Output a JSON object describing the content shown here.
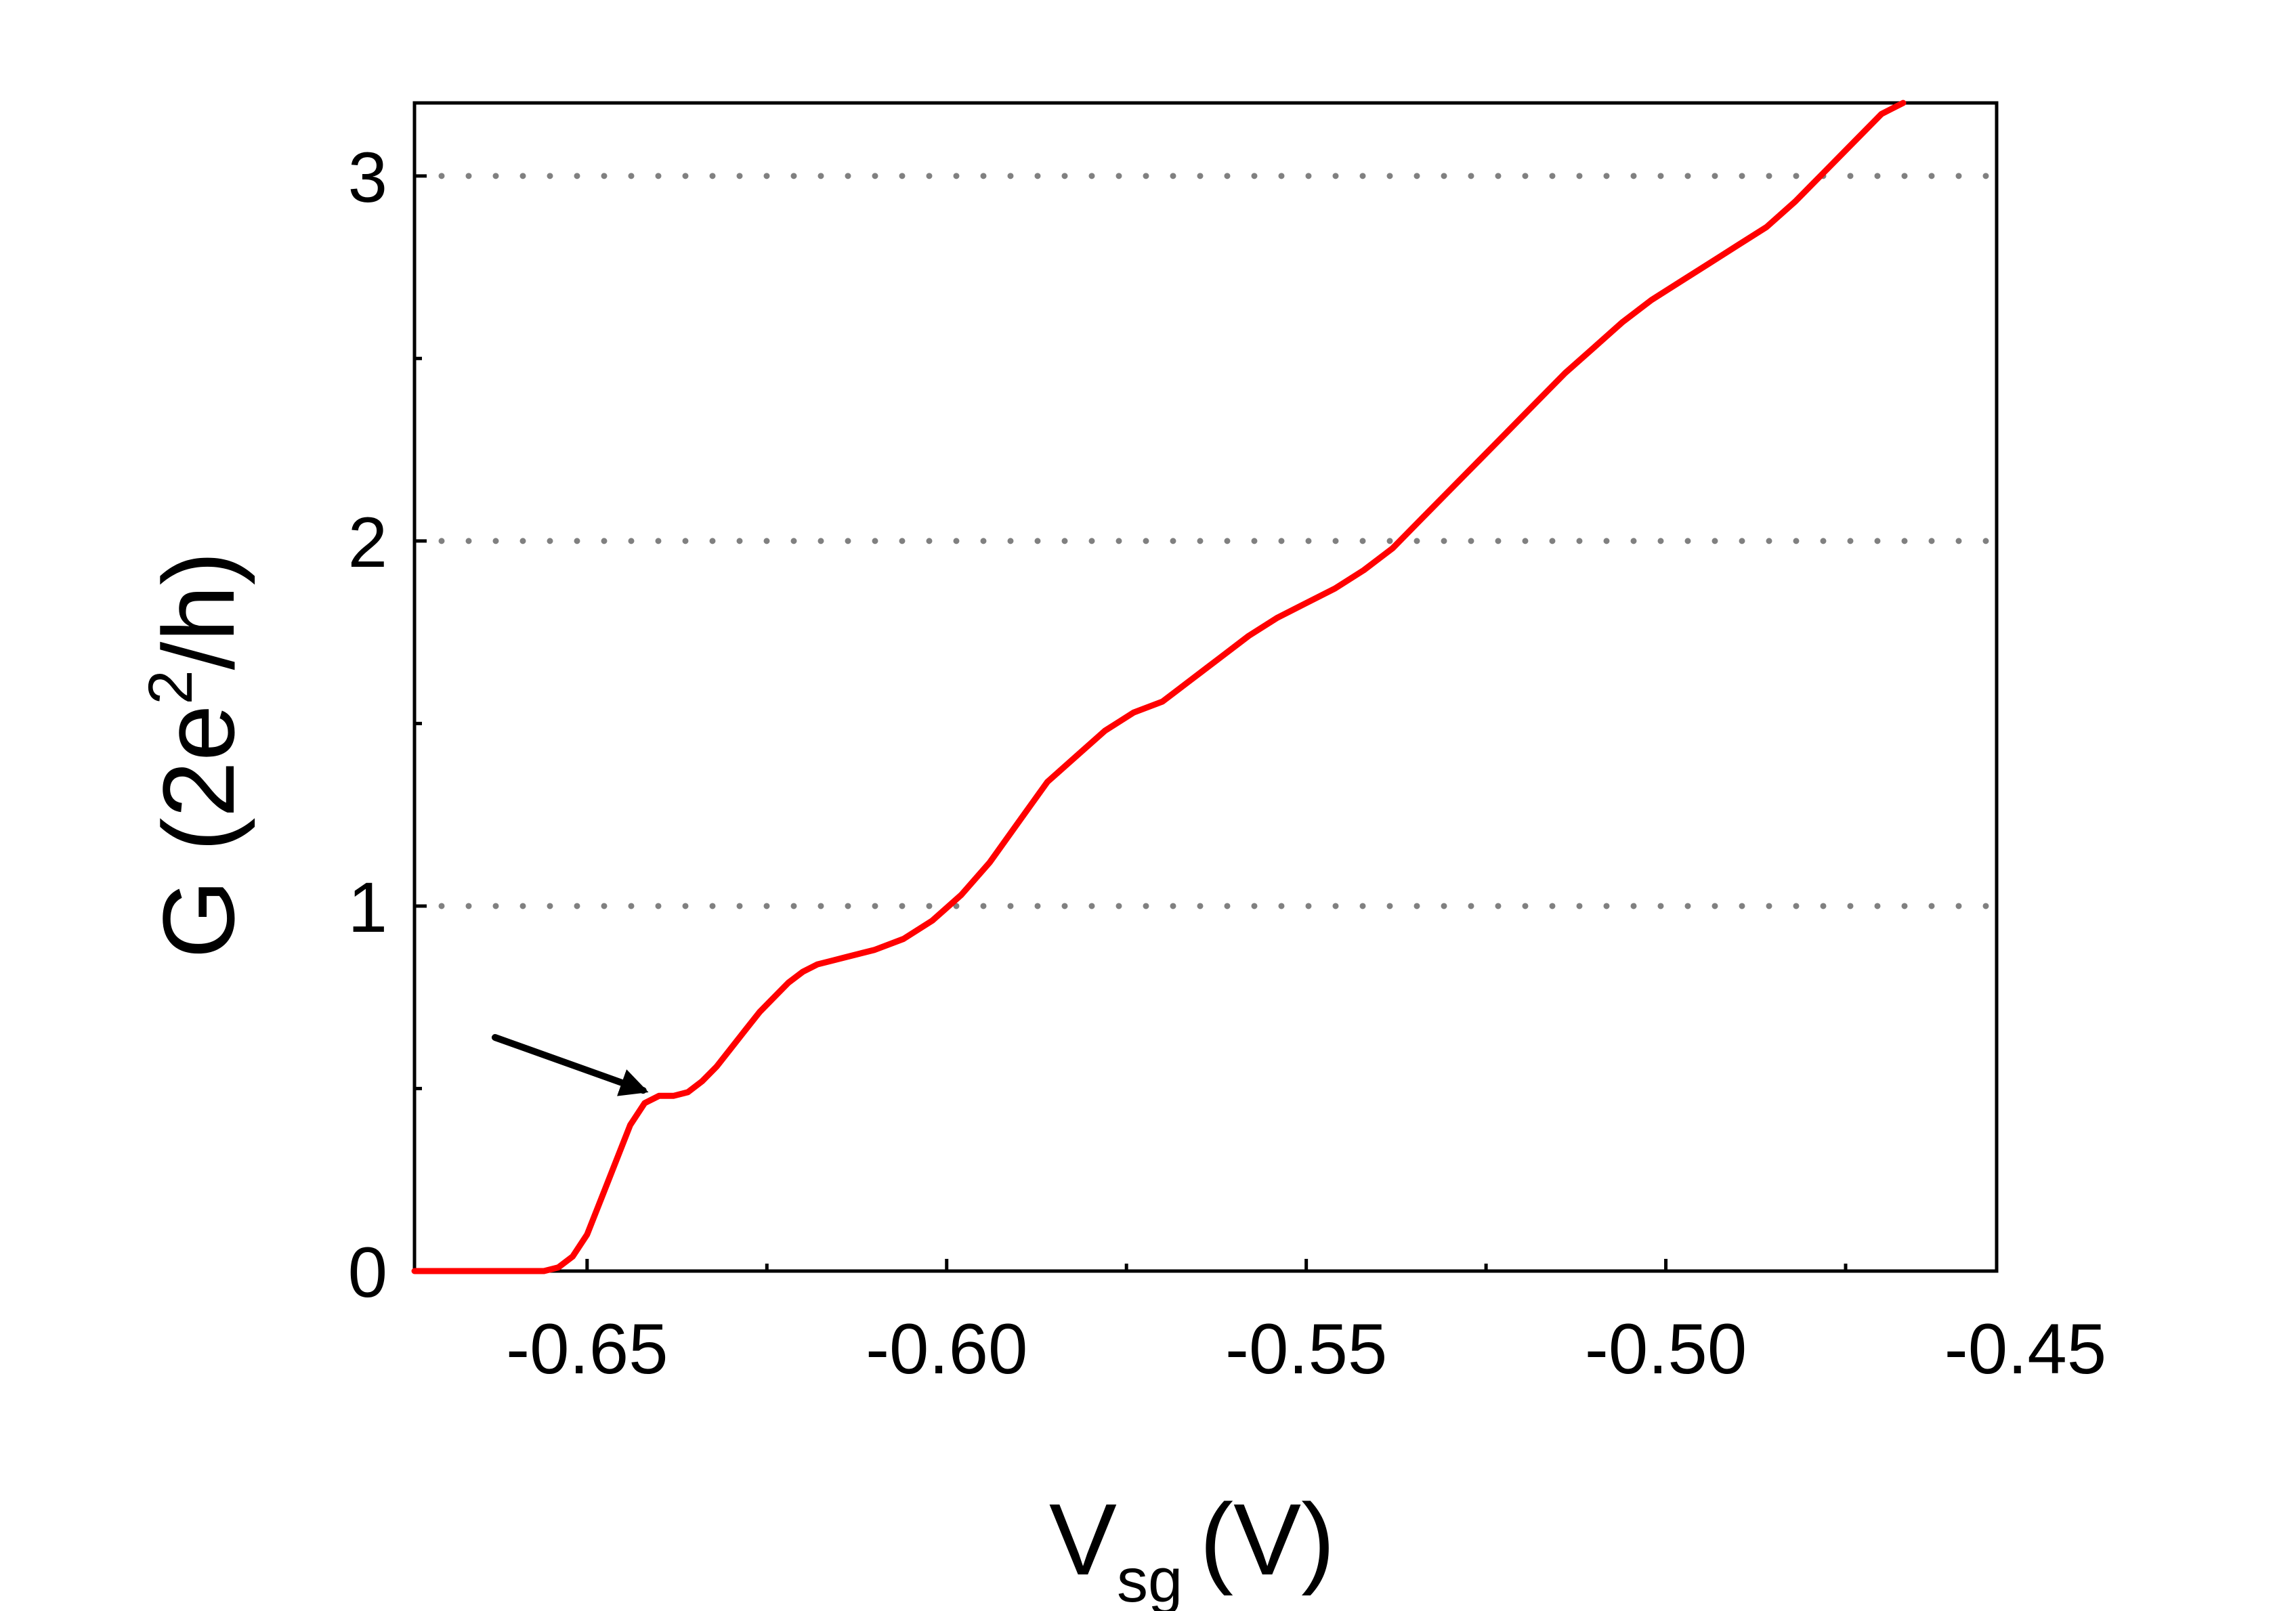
{
  "chart_data": {
    "type": "line",
    "title": "",
    "xlabel": {
      "main": "V",
      "sub": "sg",
      "unit": "(V)"
    },
    "ylabel": {
      "prefix": "G (2e",
      "sup": "2",
      "suffix": "/h)"
    },
    "xlim": [
      -0.674,
      -0.454
    ],
    "ylim": [
      0,
      3.2
    ],
    "xticks": [
      -0.65,
      -0.6,
      -0.55,
      -0.5,
      -0.45
    ],
    "xtick_labels": [
      "-0.65",
      "-0.60",
      "-0.55",
      "-0.50",
      "-0.45"
    ],
    "xminor": [
      -0.625,
      -0.575,
      -0.525,
      -0.475
    ],
    "yticks": [
      0,
      1,
      2,
      3
    ],
    "ytick_labels": [
      "0",
      "1",
      "2",
      "3"
    ],
    "yminor": [
      0.5,
      1.5,
      2.5
    ],
    "reference_lines": [
      1,
      2,
      3
    ],
    "grid": false,
    "series": [
      {
        "color": "#ff0000",
        "x": [
          -0.674,
          -0.656,
          -0.654,
          -0.652,
          -0.65,
          -0.648,
          -0.646,
          -0.644,
          -0.642,
          -0.64,
          -0.638,
          -0.636,
          -0.634,
          -0.632,
          -0.63,
          -0.628,
          -0.626,
          -0.624,
          -0.622,
          -0.62,
          -0.618,
          -0.616,
          -0.614,
          -0.612,
          -0.61,
          -0.606,
          -0.602,
          -0.598,
          -0.594,
          -0.59,
          -0.586,
          -0.582,
          -0.578,
          -0.574,
          -0.57,
          -0.568,
          -0.566,
          -0.562,
          -0.558,
          -0.554,
          -0.55,
          -0.546,
          -0.542,
          -0.538,
          -0.534,
          -0.53,
          -0.526,
          -0.522,
          -0.518,
          -0.514,
          -0.51,
          -0.506,
          -0.502,
          -0.498,
          -0.494,
          -0.49,
          -0.486,
          -0.482,
          -0.478,
          -0.474,
          -0.47,
          -0.467
        ],
        "y": [
          0,
          0,
          0.01,
          0.04,
          0.1,
          0.2,
          0.3,
          0.4,
          0.46,
          0.48,
          0.48,
          0.49,
          0.52,
          0.56,
          0.61,
          0.66,
          0.71,
          0.75,
          0.79,
          0.82,
          0.84,
          0.85,
          0.86,
          0.87,
          0.88,
          0.91,
          0.96,
          1.03,
          1.12,
          1.23,
          1.34,
          1.41,
          1.48,
          1.53,
          1.56,
          1.59,
          1.62,
          1.68,
          1.74,
          1.79,
          1.83,
          1.87,
          1.92,
          1.98,
          2.06,
          2.14,
          2.22,
          2.3,
          2.38,
          2.46,
          2.53,
          2.6,
          2.66,
          2.71,
          2.76,
          2.81,
          2.86,
          2.93,
          3.01,
          3.09,
          3.17,
          3.2
        ]
      }
    ],
    "annotations": [
      {
        "type": "arrow",
        "target_x": -0.6422,
        "target_y": 0.495,
        "from_x": -0.6628,
        "from_y": 0.64
      }
    ]
  }
}
